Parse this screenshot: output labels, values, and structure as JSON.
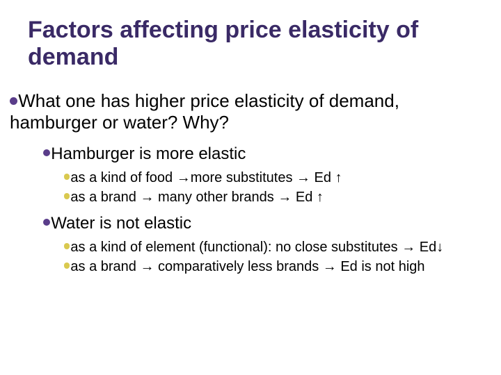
{
  "colors": {
    "title": "#3a2a66",
    "body_text": "#000000",
    "bullet_purple": "#5a3d8a",
    "bullet_yellow": "#d9c94f",
    "background": "#ffffff"
  },
  "typography": {
    "title_fontsize": 34,
    "l1_fontsize": 26,
    "l2_fontsize": 24,
    "l3_fontsize": 20,
    "title_weight": "bold",
    "family": "Arial"
  },
  "title": "Factors affecting price elasticity of demand",
  "l1": {
    "text": "What one has higher price elasticity of demand, hamburger or water? Why?"
  },
  "groups": [
    {
      "l2": "Hamburger is more elastic",
      "l3": [
        "as a kind of food →more substitutes → Ed ↑",
        "as a brand → many other brands → Ed ↑"
      ]
    },
    {
      "l2": "Water is not elastic",
      "l3": [
        "as a kind of element (functional): no close substitutes → Ed↓",
        "as a brand → comparatively less brands → Ed is not high"
      ]
    }
  ]
}
